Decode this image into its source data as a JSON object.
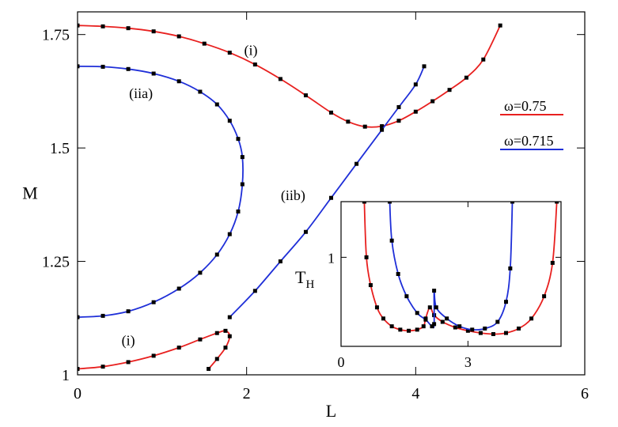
{
  "chart_data": [
    {
      "type": "line",
      "title": "",
      "xlabel": "L",
      "ylabel": "M",
      "xlim": [
        0,
        6
      ],
      "ylim": [
        1,
        1.8
      ],
      "x_ticks": [
        0,
        2,
        4,
        6
      ],
      "x_tick_labels": [
        "0",
        "2",
        "4",
        "6"
      ],
      "y_ticks": [
        1,
        1.25,
        1.5,
        1.75
      ],
      "y_tick_labels": [
        "1",
        "1.25",
        "1.5",
        "1.75"
      ],
      "grid": false,
      "legend": {
        "placement": "right",
        "entries": [
          {
            "label": "ω=0.75",
            "color": "#e8201f"
          },
          {
            "label": "ω=0.715",
            "color": "#1f2fd8"
          }
        ]
      },
      "annotations": [
        {
          "text": "(i)",
          "x": 2.05,
          "y": 1.705
        },
        {
          "text": "(iia)",
          "x": 0.75,
          "y": 1.61
        },
        {
          "text": "(iib)",
          "x": 2.55,
          "y": 1.385
        },
        {
          "text": "(i)",
          "x": 0.6,
          "y": 1.065
        }
      ],
      "series": [
        {
          "color": "#e8201f",
          "x": [
            0,
            0.3,
            0.6,
            0.9,
            1.2,
            1.5,
            1.8,
            2.1,
            2.4,
            2.7,
            3.0,
            3.2,
            3.4,
            3.6,
            3.8,
            4.0,
            4.2,
            4.4,
            4.6,
            4.8,
            5.0
          ],
          "y": [
            1.77,
            1.768,
            1.764,
            1.757,
            1.746,
            1.73,
            1.71,
            1.684,
            1.652,
            1.616,
            1.578,
            1.558,
            1.547,
            1.548,
            1.56,
            1.58,
            1.603,
            1.628,
            1.655,
            1.695,
            1.77
          ]
        },
        {
          "color": "#1f2fd8",
          "x": [
            0,
            0.3,
            0.6,
            0.9,
            1.2,
            1.45,
            1.65,
            1.8,
            1.9,
            1.95,
            1.95,
            1.9,
            1.8,
            1.65,
            1.45,
            1.2,
            0.9,
            0.6,
            0.3,
            0
          ],
          "y": [
            1.68,
            1.679,
            1.674,
            1.664,
            1.647,
            1.624,
            1.596,
            1.56,
            1.52,
            1.48,
            1.42,
            1.36,
            1.31,
            1.265,
            1.225,
            1.19,
            1.16,
            1.14,
            1.13,
            1.127
          ]
        },
        {
          "color": "#1f2fd8",
          "x": [
            1.8,
            2.1,
            2.4,
            2.7,
            3.0,
            3.3,
            3.6,
            3.8,
            4.0,
            4.1
          ],
          "y": [
            1.127,
            1.185,
            1.25,
            1.315,
            1.39,
            1.465,
            1.54,
            1.59,
            1.64,
            1.68
          ]
        },
        {
          "color": "#e8201f",
          "x": [
            0,
            0.3,
            0.6,
            0.9,
            1.2,
            1.45,
            1.65,
            1.75,
            1.8,
            1.75,
            1.65,
            1.55
          ],
          "y": [
            1.013,
            1.018,
            1.028,
            1.042,
            1.06,
            1.078,
            1.092,
            1.097,
            1.085,
            1.06,
            1.035,
            1.013
          ]
        }
      ]
    },
    {
      "type": "line",
      "title": "",
      "xlabel": "",
      "ylabel": "T_H",
      "xlim": [
        0,
        5.2
      ],
      "ylim": [
        0.2,
        1.5
      ],
      "x_ticks": [
        0,
        3
      ],
      "x_tick_labels": [
        "0",
        "3"
      ],
      "y_ticks": [
        1
      ],
      "y_tick_labels": [
        "1"
      ],
      "grid": false,
      "series": [
        {
          "color": "#e8201f",
          "x": [
            0.55,
            0.6,
            0.7,
            0.85,
            1.0,
            1.2,
            1.4,
            1.6,
            1.8,
            1.95,
            2.0,
            2.1,
            2.2,
            2.4,
            2.7,
            3.0,
            3.3,
            3.6,
            3.9,
            4.2,
            4.5,
            4.8,
            5.0,
            5.1
          ],
          "y": [
            1.5,
            1.0,
            0.75,
            0.55,
            0.45,
            0.38,
            0.35,
            0.34,
            0.35,
            0.38,
            0.45,
            0.55,
            0.48,
            0.42,
            0.37,
            0.34,
            0.32,
            0.31,
            0.32,
            0.36,
            0.45,
            0.65,
            0.95,
            1.5
          ]
        },
        {
          "color": "#1f2fd8",
          "x": [
            1.15,
            1.2,
            1.35,
            1.55,
            1.8,
            2.0,
            2.15,
            2.2,
            2.2,
            2.25,
            2.5,
            2.8,
            3.1,
            3.4,
            3.7,
            3.9,
            4.0,
            4.05
          ],
          "y": [
            1.5,
            1.15,
            0.85,
            0.65,
            0.5,
            0.44,
            0.38,
            0.4,
            0.7,
            0.55,
            0.45,
            0.38,
            0.35,
            0.36,
            0.42,
            0.6,
            0.9,
            1.5
          ]
        }
      ]
    }
  ]
}
